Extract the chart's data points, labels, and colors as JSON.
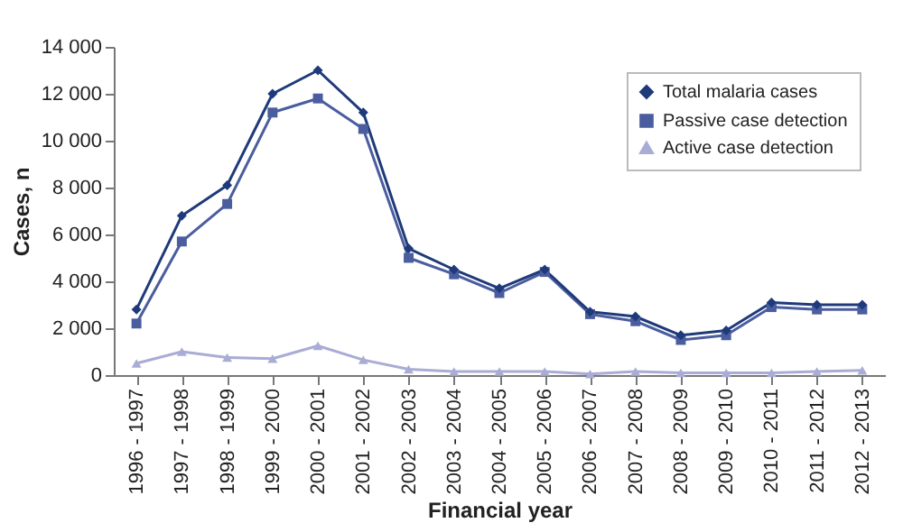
{
  "chart_data": {
    "type": "line",
    "xlabel": "Financial year",
    "ylabel": "Cases, n",
    "categories": [
      "1996 - 1997",
      "1997 - 1998",
      "1998 - 1999",
      "1999 - 2000",
      "2000 - 2001",
      "2001 - 2002",
      "2002 - 2003",
      "2003 - 2004",
      "2004 - 2005",
      "2005 - 2006",
      "2006 - 2007",
      "2007 - 2008",
      "2008 - 2009",
      "2009 - 2010",
      "2010 - 2011",
      "2011 - 2012",
      "2012 - 2013"
    ],
    "series": [
      {
        "name": "Total malaria cases",
        "color": "#1f3a7a",
        "marker": "diamond",
        "values": [
          2800,
          6800,
          8100,
          12000,
          13000,
          11200,
          5400,
          4500,
          3700,
          4500,
          2700,
          2500,
          1700,
          1900,
          3100,
          3000,
          3000
        ]
      },
      {
        "name": "Passive case detection",
        "color": "#4a5d9e",
        "marker": "square",
        "values": [
          2200,
          5700,
          7300,
          11200,
          11800,
          10500,
          5000,
          4300,
          3500,
          4400,
          2600,
          2300,
          1500,
          1700,
          2900,
          2800,
          2800
        ]
      },
      {
        "name": "Active case detection",
        "color": "#a9acd4",
        "marker": "triangle",
        "values": [
          500,
          1000,
          750,
          700,
          1250,
          650,
          250,
          150,
          150,
          150,
          50,
          150,
          100,
          100,
          100,
          150,
          200
        ]
      }
    ],
    "ylim": [
      0,
      14000
    ],
    "yticks": [
      0,
      {
        "value": 2000,
        "label": "2 000"
      },
      {
        "value": 4000,
        "label": "4 000"
      },
      {
        "value": 6000,
        "label": "6 000"
      },
      {
        "value": 8000,
        "label": "8 000"
      },
      {
        "value": 10000,
        "label": "10 000"
      },
      {
        "value": 12000,
        "label": "12 000"
      },
      {
        "value": 14000,
        "label": "14 000"
      }
    ],
    "grid": false,
    "legend": "top right"
  }
}
